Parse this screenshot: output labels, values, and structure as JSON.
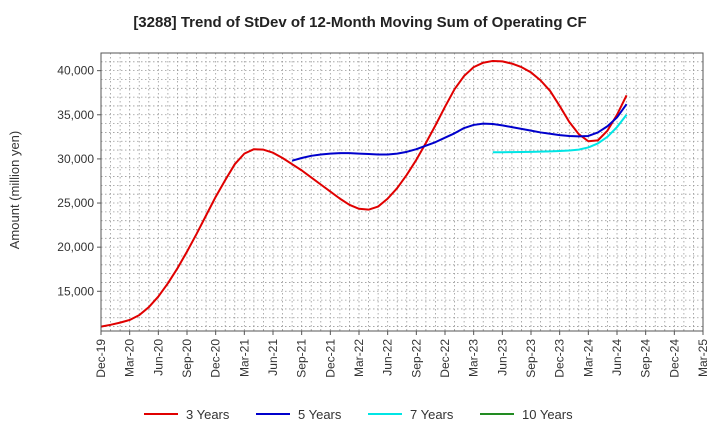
{
  "chart_data": {
    "type": "line",
    "title": "[3288]  Trend of StDev of 12-Month Moving Sum of Operating CF",
    "xlabel": "",
    "ylabel": "Amount (million yen)",
    "ylim": [
      10500,
      42000
    ],
    "yticks": [
      15000,
      20000,
      25000,
      30000,
      35000,
      40000
    ],
    "ytick_labels": [
      "15,000",
      "20,000",
      "25,000",
      "30,000",
      "35,000",
      "40,000"
    ],
    "xlim": [
      0,
      63
    ],
    "xticks": [
      0,
      3,
      6,
      9,
      12,
      15,
      18,
      21,
      24,
      27,
      30,
      33,
      36,
      39,
      42,
      45,
      48,
      51,
      54,
      57,
      60,
      63
    ],
    "xtick_labels": [
      "Dec-19",
      "Mar-20",
      "Jun-20",
      "Sep-20",
      "Dec-20",
      "Mar-21",
      "Jun-21",
      "Sep-21",
      "Dec-21",
      "Mar-22",
      "Jun-22",
      "Sep-22",
      "Dec-22",
      "Mar-23",
      "Jun-23",
      "Sep-23",
      "Dec-23",
      "Mar-24",
      "Jun-24",
      "Sep-24",
      "Dec-24",
      "Mar-25"
    ],
    "grid": true,
    "legend_position": "bottom",
    "series": [
      {
        "name": "3 Years",
        "color": "#e00000",
        "x": [
          0,
          1,
          2,
          3,
          4,
          5,
          6,
          7,
          8,
          9,
          10,
          11,
          12,
          13,
          14,
          15,
          16,
          17,
          18,
          19,
          20,
          21,
          22,
          23,
          24,
          25,
          26,
          27,
          28,
          29,
          30,
          31,
          32,
          33,
          34,
          35,
          36,
          37,
          38,
          39,
          40,
          41,
          42,
          43,
          44,
          45,
          46,
          47,
          48,
          49,
          50,
          51,
          52,
          53,
          54,
          55,
          56,
          57
        ],
        "values": [
          11000,
          11200,
          11450,
          11750,
          12300,
          13200,
          14400,
          15900,
          17600,
          19500,
          21500,
          23600,
          25700,
          27600,
          29400,
          30600,
          31100,
          31050,
          30700,
          30100,
          29400,
          28700,
          27900,
          27100,
          26300,
          25500,
          24800,
          24350,
          24250,
          24600,
          25500,
          26700,
          28200,
          29900,
          31800,
          33800,
          35900,
          37900,
          39400,
          40400,
          40900,
          41100,
          41050,
          40800,
          40400,
          39800,
          38900,
          37700,
          36000,
          34200,
          32800,
          32000,
          32100,
          33200,
          35000,
          37200,
          null,
          null
        ]
      },
      {
        "name": "5 Years",
        "color": "#0000cc",
        "x": [
          20,
          21,
          22,
          23,
          24,
          25,
          26,
          27,
          28,
          29,
          30,
          31,
          32,
          33,
          34,
          35,
          36,
          37,
          38,
          39,
          40,
          41,
          42,
          43,
          44,
          45,
          46,
          47,
          48,
          49,
          50,
          51,
          52,
          53,
          54,
          55,
          56,
          57
        ],
        "values": [
          29800,
          30100,
          30350,
          30500,
          30600,
          30650,
          30650,
          30600,
          30550,
          30500,
          30500,
          30600,
          30800,
          31100,
          31500,
          31900,
          32400,
          32900,
          33500,
          33850,
          34000,
          33950,
          33800,
          33600,
          33400,
          33200,
          33000,
          32850,
          32700,
          32600,
          32550,
          32600,
          33000,
          33700,
          34700,
          36200,
          null,
          null
        ]
      },
      {
        "name": "7 Years",
        "color": "#00e5e5",
        "x": [
          41,
          42,
          43,
          44,
          45,
          46,
          47,
          48,
          49,
          50,
          51,
          52,
          53,
          54,
          55
        ],
        "values": [
          30750,
          30760,
          30770,
          30780,
          30800,
          30820,
          30850,
          30900,
          30950,
          31050,
          31300,
          31750,
          32500,
          33600,
          35000
        ]
      },
      {
        "name": "10 Years",
        "color": "#228b22",
        "x": [],
        "values": []
      }
    ]
  }
}
